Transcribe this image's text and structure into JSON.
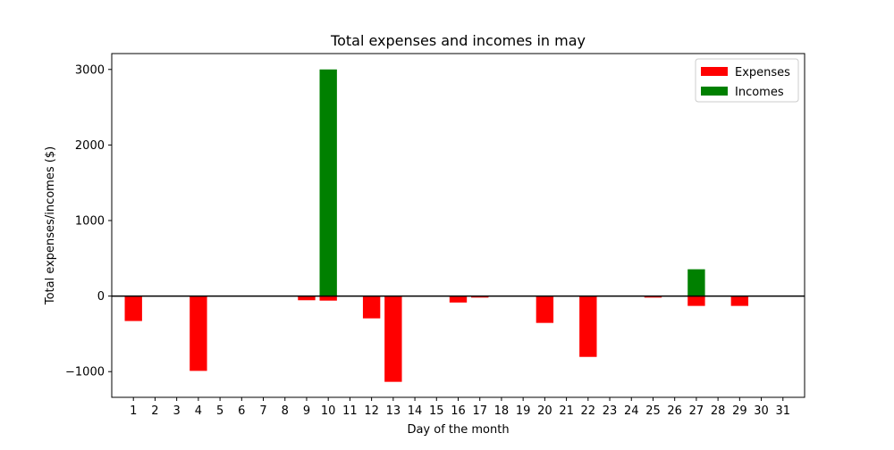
{
  "chart_data": {
    "type": "bar",
    "title": "Total expenses and incomes in may",
    "xlabel": "Day of the month",
    "ylabel": "Total expenses/incomes ($)",
    "x": [
      1,
      2,
      3,
      4,
      5,
      6,
      7,
      8,
      9,
      10,
      11,
      12,
      13,
      14,
      15,
      16,
      17,
      18,
      19,
      20,
      21,
      22,
      23,
      24,
      25,
      26,
      27,
      28,
      29,
      30,
      31
    ],
    "xlim": [
      0,
      32
    ],
    "ylim": [
      -1340,
      3210
    ],
    "yticks": [
      -1000,
      0,
      1000,
      2000,
      3000
    ],
    "yticklabels": [
      "−1000",
      "0",
      "1000",
      "2000",
      "3000"
    ],
    "legend_position": "top-right",
    "zero_line": true,
    "grid": false,
    "series": [
      {
        "name": "Expenses",
        "color": "#ff0000",
        "values": [
          -330,
          0,
          0,
          -990,
          0,
          0,
          0,
          0,
          -55,
          -60,
          0,
          -295,
          -1135,
          0,
          0,
          -85,
          -20,
          0,
          0,
          -355,
          0,
          -805,
          0,
          0,
          -20,
          0,
          -130,
          0,
          -130,
          0,
          0
        ]
      },
      {
        "name": "Incomes",
        "color": "#008000",
        "values": [
          0,
          0,
          0,
          0,
          0,
          0,
          0,
          0,
          0,
          3000,
          0,
          0,
          0,
          0,
          0,
          0,
          0,
          0,
          0,
          0,
          0,
          0,
          0,
          0,
          0,
          0,
          355,
          0,
          0,
          0,
          0
        ]
      }
    ]
  }
}
